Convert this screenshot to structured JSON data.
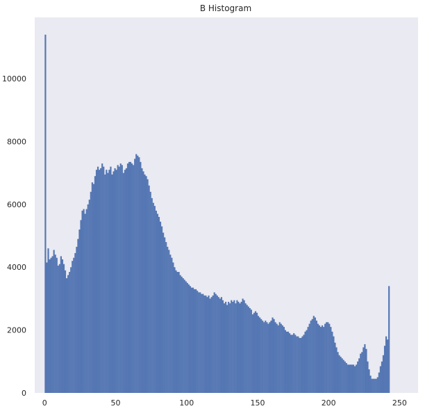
{
  "chart_data": {
    "type": "bar",
    "title": "B Histogram",
    "xlabel": "",
    "ylabel": "",
    "xlim": [
      -7,
      263
    ],
    "ylim": [
      0,
      11950
    ],
    "xticks": [
      0,
      50,
      100,
      150,
      200,
      250
    ],
    "yticks": [
      0,
      2000,
      4000,
      6000,
      8000,
      10000
    ],
    "grid": false,
    "bar_color": "#5577b3",
    "background_color": "#eaeaf2",
    "bins": {
      "start": 0,
      "width": 1,
      "values": [
        11400,
        4150,
        4600,
        4250,
        4300,
        4350,
        4550,
        4400,
        4300,
        4050,
        4100,
        4350,
        4250,
        4100,
        3900,
        3650,
        3750,
        3850,
        4000,
        4200,
        4300,
        4450,
        4650,
        4900,
        5200,
        5500,
        5800,
        5850,
        5700,
        5850,
        6000,
        6150,
        6400,
        6700,
        6650,
        6900,
        7100,
        7200,
        7100,
        7150,
        7300,
        7200,
        6950,
        7100,
        7000,
        7100,
        7200,
        6950,
        7050,
        7150,
        7100,
        7250,
        7200,
        7300,
        7250,
        7000,
        7100,
        7150,
        7300,
        7350,
        7350,
        7300,
        7250,
        7450,
        7600,
        7550,
        7500,
        7350,
        7150,
        7050,
        6950,
        6900,
        6800,
        6600,
        6400,
        6200,
        6050,
        5950,
        5800,
        5700,
        5600,
        5450,
        5300,
        5100,
        4950,
        4800,
        4650,
        4550,
        4400,
        4300,
        4150,
        4000,
        3900,
        3850,
        3850,
        3750,
        3700,
        3650,
        3600,
        3550,
        3500,
        3450,
        3400,
        3350,
        3350,
        3300,
        3300,
        3250,
        3200,
        3200,
        3150,
        3150,
        3100,
        3100,
        3050,
        3100,
        3000,
        3050,
        3100,
        3200,
        3150,
        3100,
        3050,
        3000,
        3050,
        2950,
        2850,
        2900,
        2800,
        2900,
        2850,
        2950,
        2900,
        2950,
        2850,
        2950,
        2900,
        2850,
        2900,
        3000,
        2950,
        2850,
        2800,
        2750,
        2700,
        2650,
        2500,
        2550,
        2600,
        2550,
        2450,
        2400,
        2350,
        2300,
        2250,
        2300,
        2250,
        2200,
        2250,
        2300,
        2400,
        2350,
        2250,
        2200,
        2150,
        2250,
        2200,
        2150,
        2100,
        2000,
        1950,
        1950,
        1900,
        1850,
        1850,
        1900,
        1850,
        1800,
        1800,
        1750,
        1750,
        1800,
        1850,
        1950,
        2000,
        2100,
        2200,
        2300,
        2350,
        2450,
        2400,
        2300,
        2200,
        2150,
        2100,
        2150,
        2100,
        2200,
        2250,
        2250,
        2200,
        2100,
        1950,
        1800,
        1600,
        1450,
        1300,
        1200,
        1150,
        1100,
        1050,
        1000,
        950,
        900,
        900,
        900,
        900,
        900,
        850,
        900,
        1000,
        1100,
        1250,
        1300,
        1450,
        1550,
        1400,
        1000,
        750,
        550,
        450,
        450,
        450,
        450,
        500,
        650,
        850,
        1000,
        1200,
        1500,
        1800,
        1700,
        3400
      ]
    }
  }
}
